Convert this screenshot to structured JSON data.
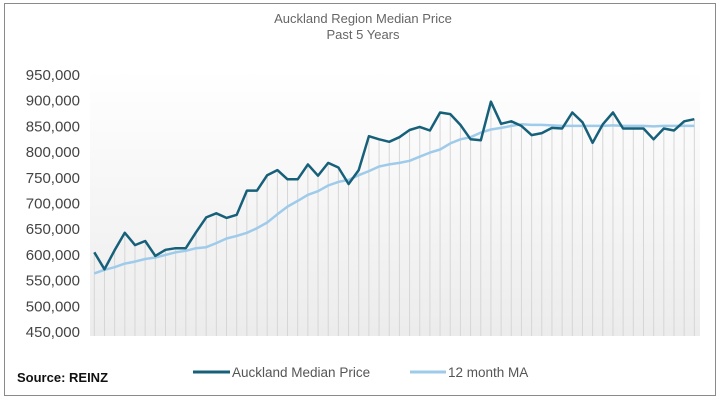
{
  "chart_data": {
    "type": "line",
    "title": "Auckland Region Median Price",
    "subtitle": "Past 5 Years",
    "source": "Source:  REINZ",
    "ylim": [
      450000,
      950000
    ],
    "yticks": [
      "450,000",
      "500,000",
      "550,000",
      "600,000",
      "650,000",
      "700,000",
      "750,000",
      "800,000",
      "850,000",
      "900,000",
      "950,000"
    ],
    "grid": "vertical",
    "legend": "bottom",
    "series": [
      {
        "name": "Auckland Median Price",
        "color": "#17607a",
        "values": [
          605000,
          572000,
          609000,
          643000,
          619000,
          627000,
          598000,
          610000,
          613000,
          613000,
          644000,
          673000,
          681000,
          672000,
          678000,
          725000,
          725000,
          755000,
          765000,
          747000,
          747000,
          776000,
          754000,
          779000,
          770000,
          738000,
          765000,
          831000,
          825000,
          820000,
          829000,
          843000,
          849000,
          842000,
          877000,
          874000,
          853000,
          825000,
          823000,
          898000,
          855000,
          860000,
          851000,
          833000,
          837000,
          847000,
          846000,
          877000,
          858000,
          818000,
          854000,
          877000,
          846000,
          846000,
          846000,
          825000,
          846000,
          842000,
          860000,
          864000
        ]
      },
      {
        "name": "12 month MA",
        "color": "#9fcbea",
        "values": [
          564000,
          571000,
          576000,
          583000,
          587000,
          592000,
          595000,
          600000,
          605000,
          608000,
          613000,
          615000,
          623000,
          632000,
          637000,
          643000,
          652000,
          663000,
          679000,
          694000,
          705000,
          717000,
          724000,
          735000,
          742000,
          746000,
          755000,
          763000,
          772000,
          776000,
          779000,
          783000,
          791000,
          799000,
          805000,
          817000,
          825000,
          829000,
          838000,
          844000,
          847000,
          851000,
          854000,
          853000,
          853000,
          852000,
          851000,
          851000,
          851000,
          851000,
          851000,
          852000,
          851000,
          851000,
          851000,
          850000,
          851000,
          851000,
          851000,
          851000
        ]
      }
    ]
  }
}
